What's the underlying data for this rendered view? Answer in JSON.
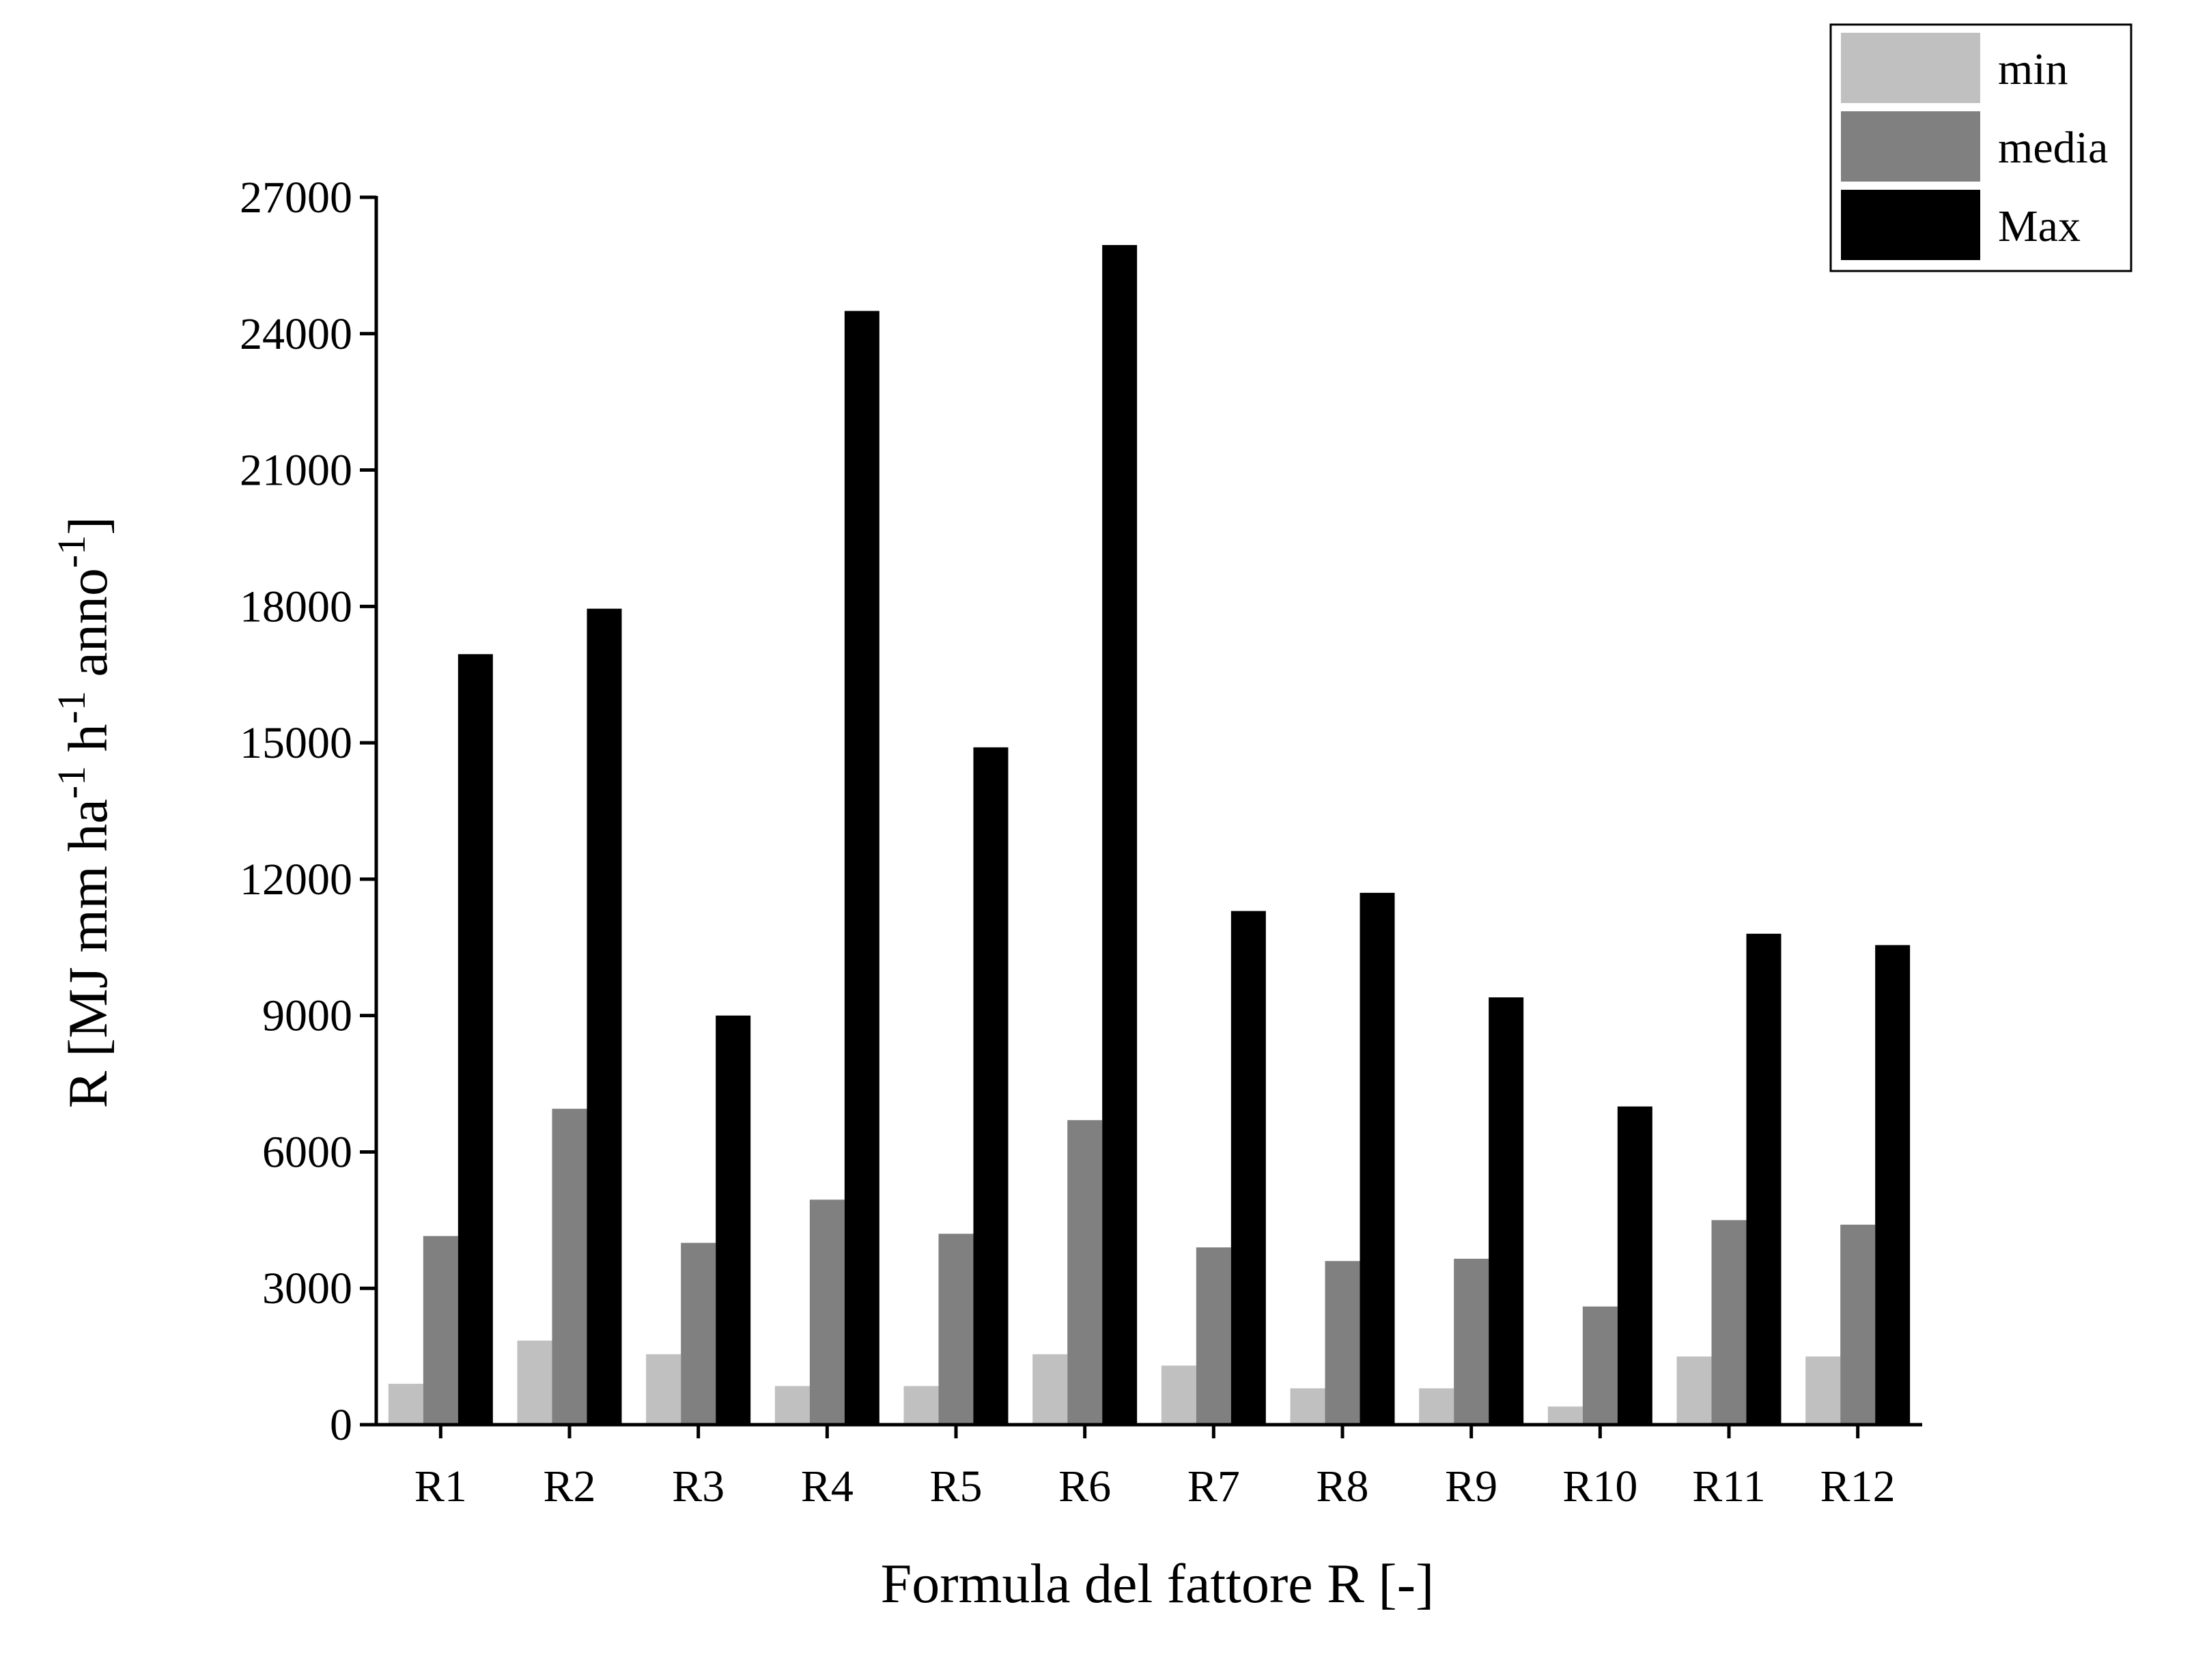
{
  "chart_data": {
    "type": "bar",
    "categories": [
      "R1",
      "R2",
      "R3",
      "R4",
      "R5",
      "R6",
      "R7",
      "R8",
      "R9",
      "R10",
      "R11",
      "R12"
    ],
    "series": [
      {
        "name": "min",
        "color": "#c0c0c0",
        "values": [
          900,
          1850,
          1550,
          850,
          850,
          1550,
          1300,
          800,
          800,
          400,
          1500,
          1500
        ]
      },
      {
        "name": "media",
        "color": "#808080",
        "values": [
          4150,
          6950,
          4000,
          4950,
          4200,
          6700,
          3900,
          3600,
          3650,
          2600,
          4500,
          4400
        ]
      },
      {
        "name": "Max",
        "color": "#000000",
        "values": [
          16950,
          17950,
          9000,
          24500,
          14900,
          25950,
          11300,
          11700,
          9400,
          7000,
          10800,
          10550
        ]
      }
    ],
    "xlabel": "Formula del fattore R [-]",
    "ylabel": {
      "prefix": "R [MJ mm ha",
      "sup1": "-1",
      "mid1": " h",
      "sup2": "-1",
      "mid2": " anno",
      "sup3": "-1",
      "suffix": "]"
    },
    "ylim": [
      0,
      27000
    ],
    "yticks": [
      "0",
      "3000",
      "6000",
      "9000",
      "12000",
      "15000",
      "18000",
      "21000",
      "24000",
      "27000"
    ],
    "grid": false,
    "legend_position": "top-right"
  }
}
